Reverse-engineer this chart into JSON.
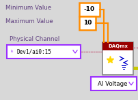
{
  "bg_color": "#d8d8d8",
  "label_color": "#5F3F7F",
  "orange": "#FF8C00",
  "purple": "#9B30FF",
  "dark_red": "#990000",
  "pink_wire": "#C87890",
  "yellow_line": "#C8C800",
  "blue_icon": "#0000CC",
  "yellow_star": "#FFD700",
  "min_label": "Minimum Value",
  "max_label": "Maximum Value",
  "min_val": "-10",
  "max_val": "10",
  "phys_label": "Physical Channel",
  "phys_val": "Dev1/ai0:15",
  "daq_label": "DAQmx",
  "ai_label": "AI Voltage"
}
